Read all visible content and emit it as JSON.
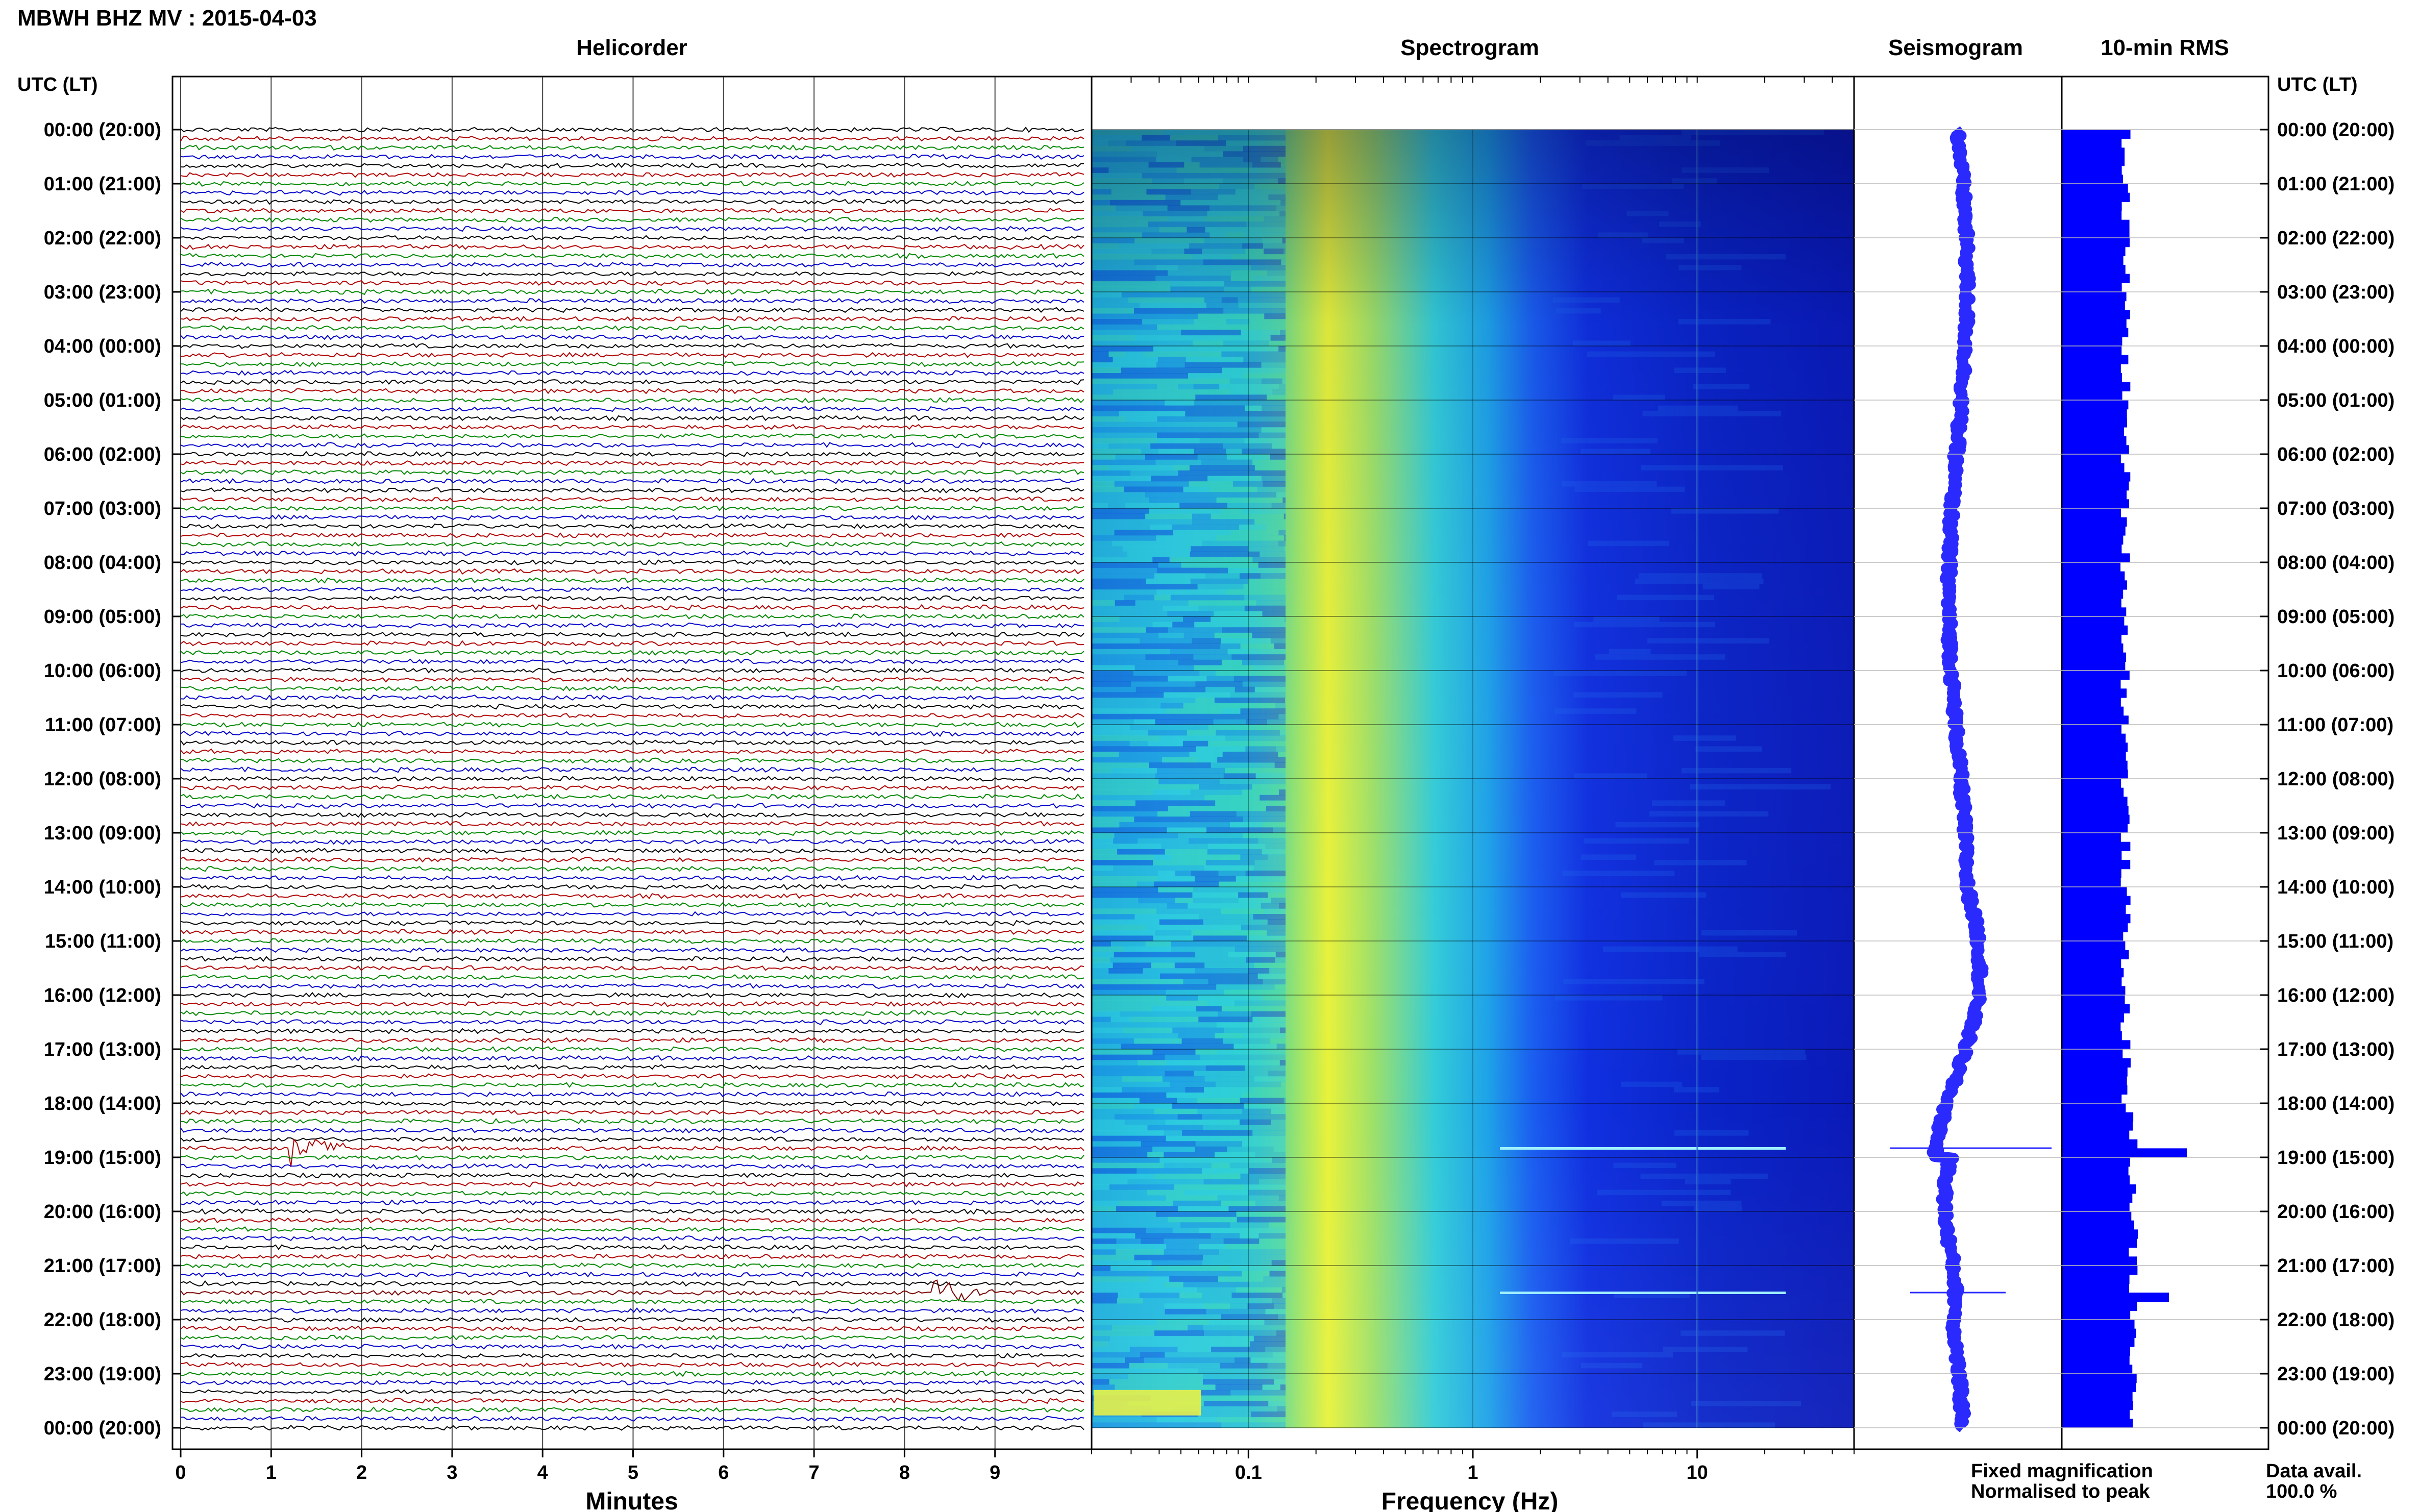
{
  "header": {
    "title": "MBWH BHZ MV : 2015-04-03",
    "utc_label_left": "UTC (LT)",
    "utc_label_right": "UTC (LT)"
  },
  "panels": {
    "helicorder": "Helicorder",
    "spectrogram": "Spectrogram",
    "seismogram": "Seismogram",
    "rms": "10-min RMS"
  },
  "axes": {
    "minutes_label": "Minutes",
    "frequency_label": "Frequency (Hz)"
  },
  "legend": {
    "fixed": "Fixed magnification",
    "normalised": "Normalised to peak",
    "fixed_color": "#1a1aff",
    "normalised_color": "#ff1a1a"
  },
  "data_avail": {
    "label": "Data avail.",
    "value": "100.0 %"
  },
  "colors": {
    "trace_cycle": [
      "#000000",
      "#b00000",
      "#008800",
      "#0000cc"
    ],
    "event": "#7a0000",
    "rms_bar": "#0000ff",
    "seismogram": "#2a2aff"
  },
  "chart_data": [
    {
      "type": "line",
      "title": "Helicorder",
      "xlabel": "Minutes",
      "x_ticks": [
        "0",
        "1",
        "2",
        "3",
        "4",
        "5",
        "6",
        "7",
        "8",
        "9"
      ],
      "xlim": [
        0,
        10
      ],
      "y_ticks": [
        "00:00 (20:00)",
        "01:00 (21:00)",
        "02:00 (22:00)",
        "03:00 (23:00)",
        "04:00 (00:00)",
        "05:00 (01:00)",
        "06:00 (02:00)",
        "07:00 (03:00)",
        "08:00 (04:00)",
        "09:00 (05:00)",
        "10:00 (06:00)",
        "11:00 (07:00)",
        "12:00 (08:00)",
        "13:00 (09:00)",
        "14:00 (10:00)",
        "15:00 (11:00)",
        "16:00 (12:00)",
        "17:00 (13:00)",
        "18:00 (14:00)",
        "19:00 (15:00)",
        "20:00 (16:00)",
        "21:00 (17:00)",
        "22:00 (18:00)",
        "23:00 (19:00)",
        "00:00 (20:00)"
      ],
      "lines_per_hour": 6,
      "events": [
        {
          "hour": 18.83,
          "minute": 1.2,
          "duration_min": 1.0
        },
        {
          "hour": 21.5,
          "minute": 8.3,
          "duration_min": 0.8
        }
      ]
    },
    {
      "type": "heatmap",
      "title": "Spectrogram",
      "xlabel": "Frequency (Hz)",
      "x_scale": "log",
      "x_ticks": [
        "0.1",
        "1",
        "10"
      ],
      "xlim": [
        0.02,
        50
      ]
    },
    {
      "type": "line",
      "title": "Seismogram"
    },
    {
      "type": "bar",
      "title": "10-min RMS",
      "spikes_hours": [
        18.83,
        21.5
      ]
    }
  ]
}
